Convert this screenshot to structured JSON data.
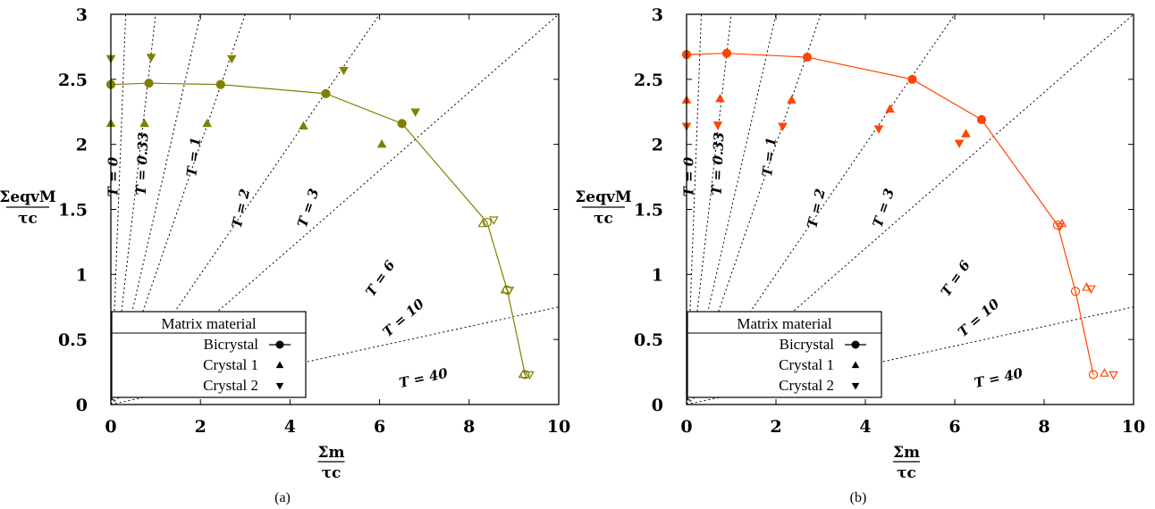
{
  "chart_data": [
    {
      "type": "scatter",
      "subfigure_label": "(a)",
      "color": "#808000",
      "xlabel": {
        "num": "Σm",
        "den": "τc"
      },
      "ylabel": {
        "num": "ΣeqvM",
        "den": "τc"
      },
      "xlim": [
        0,
        10
      ],
      "ylim": [
        0,
        3
      ],
      "xticks": [
        "0",
        "2",
        "4",
        "6",
        "8",
        "10"
      ],
      "yticks": [
        "0",
        "0.5",
        "1",
        "1.5",
        "2",
        "2.5",
        "3"
      ],
      "triaxiality_lines": [
        {
          "label": "T = 0",
          "T": 0
        },
        {
          "label": "T = 0.33",
          "T": 0.33
        },
        {
          "label": "T = 1",
          "T": 1
        },
        {
          "label": "T = 2",
          "T": 2
        },
        {
          "label": "T = 3",
          "T": 3
        },
        {
          "label": "T = 6",
          "T": 6
        },
        {
          "label": "T = 10",
          "T": 10
        },
        {
          "label": "T = 40",
          "T": 40
        }
      ],
      "legend": {
        "title": "Matrix material",
        "entries": [
          "Bicrystal",
          "Crystal 1",
          "Crystal 2"
        ],
        "position": "bottom-left"
      },
      "series": [
        {
          "name": "Bicrystal",
          "marker": "circle",
          "line": true,
          "points": [
            [
              0,
              2.46
            ],
            [
              0.85,
              2.47
            ],
            [
              2.45,
              2.46
            ],
            [
              4.8,
              2.39
            ],
            [
              6.5,
              2.16
            ],
            [
              8.4,
              1.4
            ],
            [
              8.85,
              0.88
            ],
            [
              9.25,
              0.23
            ]
          ],
          "filled": [
            true,
            true,
            true,
            true,
            true,
            false,
            false,
            false
          ]
        },
        {
          "name": "Crystal 1",
          "marker": "triangle-up",
          "line": false,
          "points": [
            [
              0,
              2.16
            ],
            [
              0.75,
              2.16
            ],
            [
              2.15,
              2.16
            ],
            [
              4.3,
              2.14
            ],
            [
              6.05,
              2.0
            ],
            [
              8.3,
              1.39
            ],
            [
              8.8,
              0.88
            ],
            [
              9.2,
              0.23
            ]
          ],
          "filled": [
            true,
            true,
            true,
            true,
            true,
            false,
            false,
            false
          ]
        },
        {
          "name": "Crystal 2",
          "marker": "triangle-down",
          "line": false,
          "points": [
            [
              0,
              2.66
            ],
            [
              0.9,
              2.67
            ],
            [
              2.7,
              2.66
            ],
            [
              5.2,
              2.57
            ],
            [
              6.8,
              2.25
            ],
            [
              8.55,
              1.42
            ],
            [
              8.9,
              0.88
            ],
            [
              9.35,
              0.23
            ]
          ],
          "filled": [
            true,
            true,
            true,
            true,
            true,
            false,
            false,
            false
          ]
        }
      ]
    },
    {
      "type": "scatter",
      "subfigure_label": "(b)",
      "color": "#ff4500",
      "xlabel": {
        "num": "Σm",
        "den": "τc"
      },
      "ylabel": {
        "num": "ΣeqvM",
        "den": "τc"
      },
      "xlim": [
        0,
        10
      ],
      "ylim": [
        0,
        3
      ],
      "xticks": [
        "0",
        "2",
        "4",
        "6",
        "8",
        "10"
      ],
      "yticks": [
        "0",
        "0.5",
        "1",
        "1.5",
        "2",
        "2.5",
        "3"
      ],
      "triaxiality_lines": [
        {
          "label": "T = 0",
          "T": 0
        },
        {
          "label": "T = 0.33",
          "T": 0.33
        },
        {
          "label": "T = 1",
          "T": 1
        },
        {
          "label": "T = 2",
          "T": 2
        },
        {
          "label": "T = 3",
          "T": 3
        },
        {
          "label": "T = 6",
          "T": 6
        },
        {
          "label": "T = 10",
          "T": 10
        },
        {
          "label": "T = 40",
          "T": 40
        }
      ],
      "legend": {
        "title": "Matrix material",
        "entries": [
          "Bicrystal",
          "Crystal 1",
          "Crystal 2"
        ],
        "position": "bottom-left"
      },
      "series": [
        {
          "name": "Bicrystal",
          "marker": "circle",
          "line": true,
          "points": [
            [
              0,
              2.69
            ],
            [
              0.9,
              2.7
            ],
            [
              2.7,
              2.67
            ],
            [
              5.05,
              2.5
            ],
            [
              6.6,
              2.19
            ],
            [
              8.3,
              1.38
            ],
            [
              8.7,
              0.87
            ],
            [
              9.1,
              0.23
            ]
          ],
          "filled": [
            true,
            true,
            true,
            true,
            true,
            false,
            false,
            false
          ]
        },
        {
          "name": "Crystal 1",
          "marker": "triangle-up",
          "line": false,
          "points": [
            [
              0,
              2.34
            ],
            [
              0.75,
              2.35
            ],
            [
              2.35,
              2.34
            ],
            [
              4.55,
              2.27
            ],
            [
              6.25,
              2.08
            ],
            [
              8.4,
              1.39
            ],
            [
              8.95,
              0.9
            ],
            [
              9.35,
              0.24
            ]
          ],
          "filled": [
            true,
            true,
            true,
            true,
            true,
            false,
            false,
            false
          ]
        },
        {
          "name": "Crystal 2",
          "marker": "triangle-down",
          "line": false,
          "points": [
            [
              0,
              2.14
            ],
            [
              0.7,
              2.15
            ],
            [
              2.15,
              2.14
            ],
            [
              4.3,
              2.12
            ],
            [
              6.1,
              2.01
            ],
            [
              8.35,
              1.37
            ],
            [
              9.05,
              0.89
            ],
            [
              9.55,
              0.23
            ]
          ],
          "filled": [
            true,
            true,
            true,
            true,
            true,
            false,
            false,
            false
          ]
        }
      ]
    }
  ]
}
